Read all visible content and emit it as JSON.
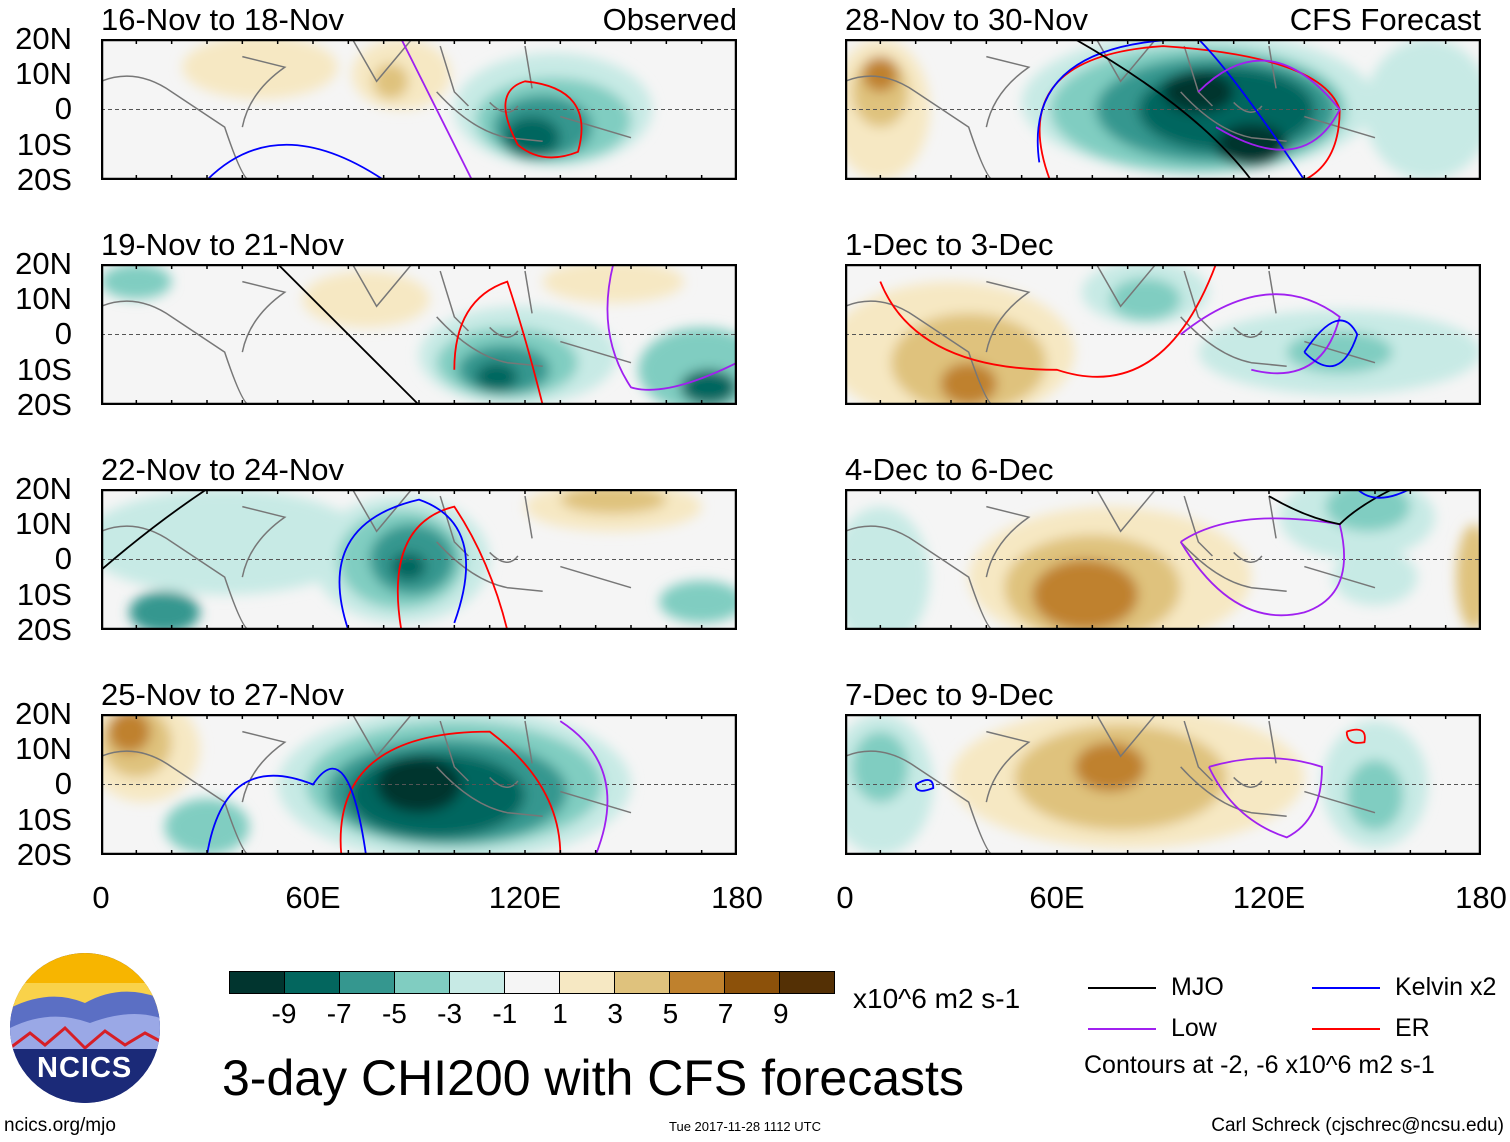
{
  "panels": [
    {
      "title": "16-Nov to 18-Nov",
      "label": "Observed"
    },
    {
      "title": "19-Nov to 21-Nov",
      "label": ""
    },
    {
      "title": "22-Nov to 24-Nov",
      "label": ""
    },
    {
      "title": "25-Nov to 27-Nov",
      "label": ""
    },
    {
      "title": "28-Nov to 30-Nov",
      "label": "CFS Forecast"
    },
    {
      "title": "1-Dec to 3-Dec",
      "label": ""
    },
    {
      "title": "4-Dec to 6-Dec",
      "label": ""
    },
    {
      "title": "7-Dec to 9-Dec",
      "label": ""
    }
  ],
  "lat_labels": [
    "20N",
    "10N",
    "0",
    "10S",
    "20S"
  ],
  "lon_labels": [
    "0",
    "60E",
    "120E",
    "180"
  ],
  "colorbar": {
    "labels": [
      "-9",
      "-7",
      "-5",
      "-3",
      "-1",
      "1",
      "3",
      "5",
      "7",
      "9"
    ],
    "colors": [
      "#01352f",
      "#03665e",
      "#35978f",
      "#80cdc1",
      "#c7eae5",
      "#f5f5f5",
      "#f6e8c3",
      "#dfc27d",
      "#bf812d",
      "#8c510a",
      "#543005"
    ],
    "units": "x10^6 m2 s-1"
  },
  "legend": {
    "items": [
      {
        "label": "MJO",
        "color": "#000000"
      },
      {
        "label": "Kelvin x2",
        "color": "#0000ff"
      },
      {
        "label": "Low",
        "color": "#a020f0"
      },
      {
        "label": "ER",
        "color": "#ff0000"
      }
    ],
    "note": "Contours at -2, -6 x10^6 m2 s-1"
  },
  "title": "3-day CHI200 with CFS forecasts",
  "logo_text": "NCICS",
  "footer": {
    "url": "ncics.org/mjo",
    "timestamp": "Tue 2017-11-28 1112 UTC",
    "author": "Carl Schreck (cjschrec@ncsu.edu)"
  }
}
